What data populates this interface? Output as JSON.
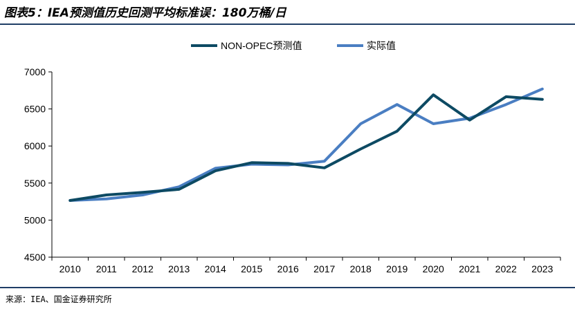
{
  "header": {
    "title": "图表5：IEA预测值历史回测平均标准误：180万桶/日"
  },
  "footer": {
    "source": "来源：IEA、国金证券研究所"
  },
  "chart_data": {
    "type": "line",
    "categories": [
      "2010",
      "2011",
      "2012",
      "2013",
      "2014",
      "2015",
      "2016",
      "2017",
      "2018",
      "2019",
      "2020",
      "2021",
      "2022",
      "2023"
    ],
    "series": [
      {
        "name": "NON-OPEC预测值",
        "color": "#0d4a63",
        "values": [
          5265,
          5340,
          5375,
          5415,
          5665,
          5775,
          5765,
          5705,
          5960,
          6200,
          6690,
          6350,
          6665,
          6630
        ]
      },
      {
        "name": "实际值",
        "color": "#4a7ec2",
        "values": [
          5265,
          5285,
          5340,
          5450,
          5700,
          5755,
          5745,
          5795,
          6300,
          6560,
          6300,
          6375,
          6560,
          6770
        ]
      }
    ],
    "yticks": [
      "4500",
      "5000",
      "5500",
      "6000",
      "6500",
      "7000"
    ],
    "ylim": [
      4500,
      7000
    ],
    "legend_position": "top-center",
    "grid": false
  }
}
